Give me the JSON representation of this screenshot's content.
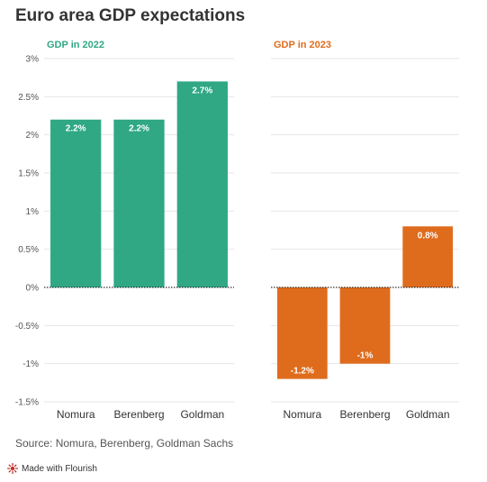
{
  "title": "Euro area GDP expectations",
  "source": "Source: Nomura, Berenberg, Goldman Sachs",
  "credit": "Made with Flourish",
  "colors": {
    "panel_2022": "#2fa883",
    "panel_2023": "#df6c1d",
    "grid": "#e6e6e6",
    "zero": "#333333",
    "axis_text": "#555555"
  },
  "chart_data": [
    {
      "type": "bar",
      "title": "GDP in 2022",
      "categories": [
        "Nomura",
        "Berenberg",
        "Goldman"
      ],
      "values": [
        2.2,
        2.2,
        2.7
      ],
      "data_labels": [
        "2.2%",
        "2.2%",
        "2.7%"
      ],
      "ylim": [
        -1.5,
        3
      ],
      "yticks": [
        3,
        2.5,
        2,
        1.5,
        1,
        0.5,
        0,
        -0.5,
        -1,
        -1.5
      ],
      "ytick_labels": [
        "3%",
        "2.5%",
        "2%",
        "1.5%",
        "1%",
        "0.5%",
        "0%",
        "-0.5%",
        "-1%",
        "-1.5%"
      ],
      "grid": true,
      "color": "#2fa883"
    },
    {
      "type": "bar",
      "title": "GDP in 2023",
      "categories": [
        "Nomura",
        "Berenberg",
        "Goldman"
      ],
      "values": [
        -1.2,
        -1,
        0.8
      ],
      "data_labels": [
        "-1.2%",
        "-1%",
        "0.8%"
      ],
      "ylim": [
        -1.5,
        3
      ],
      "grid": true,
      "color": "#df6c1d"
    }
  ]
}
